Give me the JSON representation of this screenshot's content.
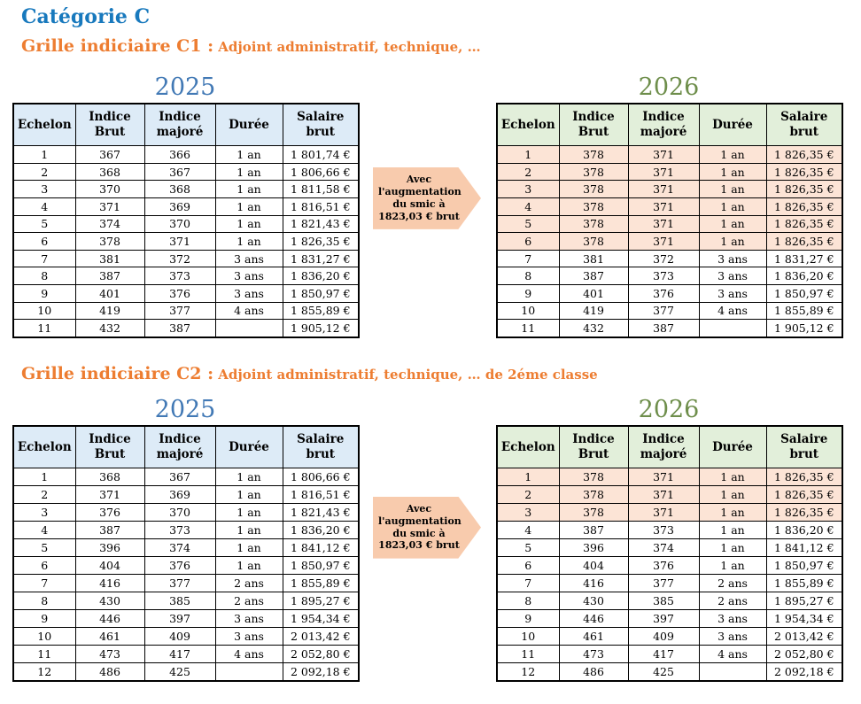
{
  "page_title": "Catégorie C",
  "columns": [
    "Echelon",
    "Indice Brut",
    "Indice majoré",
    "Durée",
    "Salaire brut"
  ],
  "arrow_text": "Avec l'augmentation du smic à 1823,03 € brut",
  "colors": {
    "title_blue": "#1879BD",
    "heading_orange": "#ED7D31",
    "year_blue": "#4279B5",
    "year_green": "#6E8E4B",
    "header_blue": "#DDEBF7",
    "header_green": "#E2EFDA",
    "highlight_peach": "#FCE4D6",
    "arrow_fill": "#F8CBAD"
  },
  "sections": [
    {
      "heading_label": "Grille indiciaire C1 :",
      "heading_desc": "Adjoint administratif, technique, …",
      "left_table": {
        "year": "2025",
        "highlight_rows": [],
        "rows": [
          [
            "1",
            "367",
            "366",
            "1 an",
            "1 801,74 €"
          ],
          [
            "2",
            "368",
            "367",
            "1 an",
            "1 806,66 €"
          ],
          [
            "3",
            "370",
            "368",
            "1 an",
            "1 811,58 €"
          ],
          [
            "4",
            "371",
            "369",
            "1 an",
            "1 816,51 €"
          ],
          [
            "5",
            "374",
            "370",
            "1 an",
            "1 821,43 €"
          ],
          [
            "6",
            "378",
            "371",
            "1 an",
            "1 826,35 €"
          ],
          [
            "7",
            "381",
            "372",
            "3 ans",
            "1 831,27 €"
          ],
          [
            "8",
            "387",
            "373",
            "3 ans",
            "1 836,20 €"
          ],
          [
            "9",
            "401",
            "376",
            "3 ans",
            "1 850,97 €"
          ],
          [
            "10",
            "419",
            "377",
            "4 ans",
            "1 855,89 €"
          ],
          [
            "11",
            "432",
            "387",
            "",
            "1 905,12 €"
          ]
        ]
      },
      "right_table": {
        "year": "2026",
        "highlight_rows": [
          0,
          1,
          2,
          3,
          4,
          5
        ],
        "rows": [
          [
            "1",
            "378",
            "371",
            "1 an",
            "1 826,35 €"
          ],
          [
            "2",
            "378",
            "371",
            "1 an",
            "1 826,35 €"
          ],
          [
            "3",
            "378",
            "371",
            "1 an",
            "1 826,35 €"
          ],
          [
            "4",
            "378",
            "371",
            "1 an",
            "1 826,35 €"
          ],
          [
            "5",
            "378",
            "371",
            "1 an",
            "1 826,35 €"
          ],
          [
            "6",
            "378",
            "371",
            "1 an",
            "1 826,35 €"
          ],
          [
            "7",
            "381",
            "372",
            "3 ans",
            "1 831,27 €"
          ],
          [
            "8",
            "387",
            "373",
            "3 ans",
            "1 836,20 €"
          ],
          [
            "9",
            "401",
            "376",
            "3 ans",
            "1 850,97 €"
          ],
          [
            "10",
            "419",
            "377",
            "4 ans",
            "1 855,89 €"
          ],
          [
            "11",
            "432",
            "387",
            "",
            "1 905,12 €"
          ]
        ]
      }
    },
    {
      "heading_label": "Grille indiciaire C2 :",
      "heading_desc": "Adjoint administratif, technique, … de 2éme classe",
      "left_table": {
        "year": "2025",
        "highlight_rows": [],
        "rows": [
          [
            "1",
            "368",
            "367",
            "1 an",
            "1 806,66 €"
          ],
          [
            "2",
            "371",
            "369",
            "1 an",
            "1 816,51 €"
          ],
          [
            "3",
            "376",
            "370",
            "1 an",
            "1 821,43 €"
          ],
          [
            "4",
            "387",
            "373",
            "1 an",
            "1 836,20 €"
          ],
          [
            "5",
            "396",
            "374",
            "1 an",
            "1 841,12 €"
          ],
          [
            "6",
            "404",
            "376",
            "1 an",
            "1 850,97 €"
          ],
          [
            "7",
            "416",
            "377",
            "2 ans",
            "1 855,89 €"
          ],
          [
            "8",
            "430",
            "385",
            "2 ans",
            "1 895,27 €"
          ],
          [
            "9",
            "446",
            "397",
            "3 ans",
            "1 954,34 €"
          ],
          [
            "10",
            "461",
            "409",
            "3 ans",
            "2 013,42 €"
          ],
          [
            "11",
            "473",
            "417",
            "4 ans",
            "2 052,80 €"
          ],
          [
            "12",
            "486",
            "425",
            "",
            "2 092,18 €"
          ]
        ]
      },
      "right_table": {
        "year": "2026",
        "highlight_rows": [
          0,
          1,
          2
        ],
        "rows": [
          [
            "1",
            "378",
            "371",
            "1 an",
            "1 826,35 €"
          ],
          [
            "2",
            "378",
            "371",
            "1 an",
            "1 826,35 €"
          ],
          [
            "3",
            "378",
            "371",
            "1 an",
            "1 826,35 €"
          ],
          [
            "4",
            "387",
            "373",
            "1 an",
            "1 836,20 €"
          ],
          [
            "5",
            "396",
            "374",
            "1 an",
            "1 841,12 €"
          ],
          [
            "6",
            "404",
            "376",
            "1 an",
            "1 850,97 €"
          ],
          [
            "7",
            "416",
            "377",
            "2 ans",
            "1 855,89 €"
          ],
          [
            "8",
            "430",
            "385",
            "2 ans",
            "1 895,27 €"
          ],
          [
            "9",
            "446",
            "397",
            "3 ans",
            "1 954,34 €"
          ],
          [
            "10",
            "461",
            "409",
            "3 ans",
            "2 013,42 €"
          ],
          [
            "11",
            "473",
            "417",
            "4 ans",
            "2 052,80 €"
          ],
          [
            "12",
            "486",
            "425",
            "",
            "2 092,18 €"
          ]
        ]
      }
    }
  ]
}
